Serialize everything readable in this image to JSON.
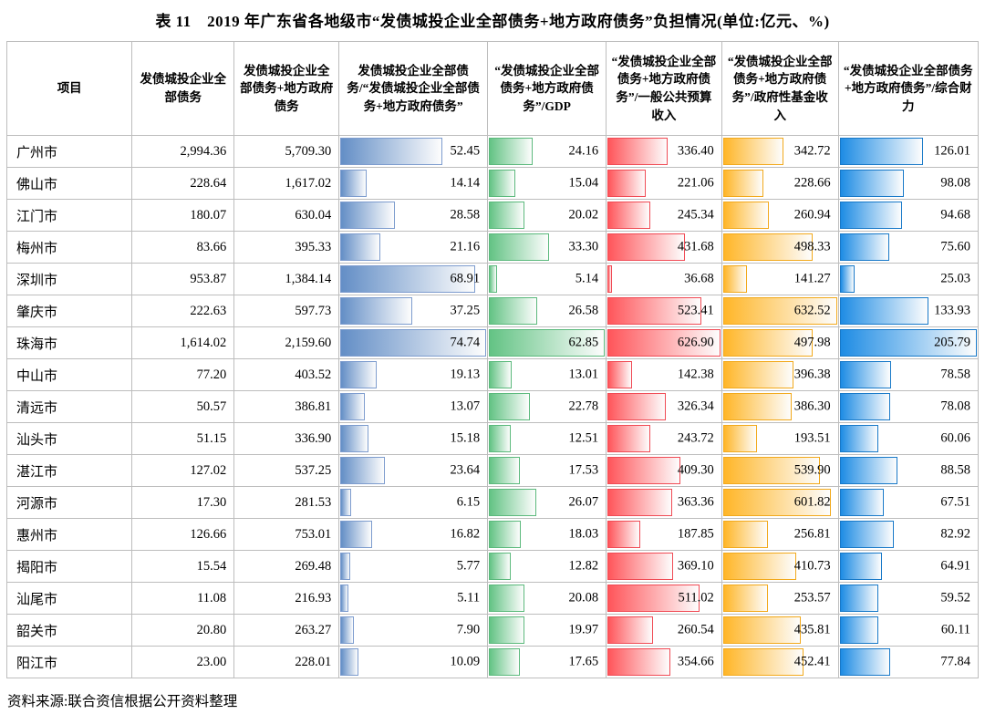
{
  "title": "表 11　2019 年广东省各地级市“发债城投企业全部债务+地方政府债务”负担情况(单位:亿元、%)",
  "source": "资料来源:联合资信根据公开资料整理",
  "chart_data": {
    "type": "table",
    "columns": [
      "项目",
      "发债城投企业全部债务",
      "发债城投企业全部债务+地方政府债务",
      "发债城投企业全部债务/“发债城投企业全部债务+地方政府债务”",
      "“发债城投企业全部债务+地方政府债务”/GDP",
      "“发债城投企业全部债务+地方政府债务”/一般公共预算收入",
      "“发债城投企业全部债务+地方政府债务”/政府性基金收入",
      "“发债城投企业全部债务+地方政府债务”/综合财力"
    ],
    "bars": [
      {
        "value_index": 2,
        "name": "ratio-of-total-debt-databar",
        "fill": "#638ec6",
        "border": "#7d9cce"
      },
      {
        "value_index": 3,
        "name": "debt-to-gdp-databar",
        "fill": "#63c384",
        "border": "#5bb97c"
      },
      {
        "value_index": 4,
        "name": "debt-to-budget-revenue-databar",
        "fill": "#ff555a",
        "border": "#f04b55"
      },
      {
        "value_index": 5,
        "name": "debt-to-fund-revenue-databar",
        "fill": "#ffb628",
        "border": "#f2a91c"
      },
      {
        "value_index": 6,
        "name": "debt-to-fiscal-capacity-databar",
        "fill": "#1e8ce4",
        "border": "#1879c8"
      }
    ],
    "rows": [
      {
        "city": "广州市",
        "values": [
          "2,994.36",
          "5,709.30",
          "52.45",
          "24.16",
          "336.40",
          "342.72",
          "126.01"
        ]
      },
      {
        "city": "佛山市",
        "values": [
          "228.64",
          "1,617.02",
          "14.14",
          "15.04",
          "221.06",
          "228.66",
          "98.08"
        ]
      },
      {
        "city": "江门市",
        "values": [
          "180.07",
          "630.04",
          "28.58",
          "20.02",
          "245.34",
          "260.94",
          "94.68"
        ]
      },
      {
        "city": "梅州市",
        "values": [
          "83.66",
          "395.33",
          "21.16",
          "33.30",
          "431.68",
          "498.33",
          "75.60"
        ]
      },
      {
        "city": "深圳市",
        "values": [
          "953.87",
          "1,384.14",
          "68.91",
          "5.14",
          "36.68",
          "141.27",
          "25.03"
        ]
      },
      {
        "city": "肇庆市",
        "values": [
          "222.63",
          "597.73",
          "37.25",
          "26.58",
          "523.41",
          "632.52",
          "133.93"
        ]
      },
      {
        "city": "珠海市",
        "values": [
          "1,614.02",
          "2,159.60",
          "74.74",
          "62.85",
          "626.90",
          "497.98",
          "205.79"
        ]
      },
      {
        "city": "中山市",
        "values": [
          "77.20",
          "403.52",
          "19.13",
          "13.01",
          "142.38",
          "396.38",
          "78.58"
        ]
      },
      {
        "city": "清远市",
        "values": [
          "50.57",
          "386.81",
          "13.07",
          "22.78",
          "326.34",
          "386.30",
          "78.08"
        ]
      },
      {
        "city": "汕头市",
        "values": [
          "51.15",
          "336.90",
          "15.18",
          "12.51",
          "243.72",
          "193.51",
          "60.06"
        ]
      },
      {
        "city": "湛江市",
        "values": [
          "127.02",
          "537.25",
          "23.64",
          "17.53",
          "409.30",
          "539.90",
          "88.58"
        ]
      },
      {
        "city": "河源市",
        "values": [
          "17.30",
          "281.53",
          "6.15",
          "26.07",
          "363.36",
          "601.82",
          "67.51"
        ]
      },
      {
        "city": "惠州市",
        "values": [
          "126.66",
          "753.01",
          "16.82",
          "18.03",
          "187.85",
          "256.81",
          "82.92"
        ]
      },
      {
        "city": "揭阳市",
        "values": [
          "15.54",
          "269.48",
          "5.77",
          "12.82",
          "369.10",
          "410.73",
          "64.91"
        ]
      },
      {
        "city": "汕尾市",
        "values": [
          "11.08",
          "216.93",
          "5.11",
          "20.08",
          "511.02",
          "253.57",
          "59.52"
        ]
      },
      {
        "city": "韶关市",
        "values": [
          "20.80",
          "263.27",
          "7.90",
          "19.97",
          "260.54",
          "435.81",
          "60.11"
        ]
      },
      {
        "city": "阳江市",
        "values": [
          "23.00",
          "228.01",
          "10.09",
          "17.65",
          "354.66",
          "452.41",
          "77.84"
        ]
      }
    ]
  }
}
